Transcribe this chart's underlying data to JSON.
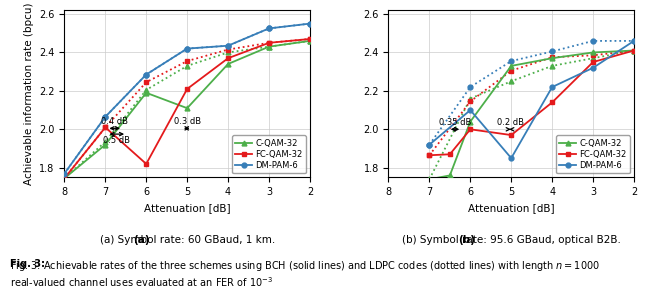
{
  "left": {
    "xlabel": "Attenuation [dB]",
    "ylabel": "Achievable information rate (bpcu)",
    "xlim": [
      8,
      2
    ],
    "ylim": [
      1.75,
      2.62
    ],
    "yticks": [
      1.8,
      2.0,
      2.2,
      2.4,
      2.6
    ],
    "xticks": [
      8,
      7,
      6,
      5,
      4,
      3,
      2
    ],
    "solid": {
      "C-QAM-32": {
        "x": [
          8,
          7,
          6,
          5,
          4,
          3,
          2
        ],
        "y": [
          1.745,
          1.92,
          2.19,
          2.11,
          2.34,
          2.43,
          2.46
        ],
        "color": "#4daf4a",
        "marker": "^"
      },
      "FC-QAM-32": {
        "x": [
          8,
          7,
          6,
          5,
          4,
          3,
          2
        ],
        "y": [
          1.745,
          2.01,
          1.82,
          2.21,
          2.37,
          2.45,
          2.47
        ],
        "color": "#e41a1c",
        "marker": "s"
      },
      "DM-PAM-6": {
        "x": [
          8,
          7,
          6,
          5,
          4,
          3,
          2
        ],
        "y": [
          1.77,
          2.065,
          2.285,
          2.42,
          2.435,
          2.525,
          2.55
        ],
        "color": "#377eb8",
        "marker": "o"
      }
    },
    "dotted": {
      "C-QAM-32": {
        "x": [
          8,
          7,
          6,
          5,
          4,
          3,
          2
        ],
        "y": [
          1.745,
          1.935,
          2.205,
          2.33,
          2.4,
          2.43,
          2.46
        ],
        "color": "#4daf4a",
        "marker": "^"
      },
      "FC-QAM-32": {
        "x": [
          8,
          7,
          6,
          5,
          4,
          3,
          2
        ],
        "y": [
          1.745,
          2.01,
          2.245,
          2.355,
          2.415,
          2.45,
          2.47
        ],
        "color": "#e41a1c",
        "marker": "s"
      },
      "DM-PAM-6": {
        "x": [
          8,
          7,
          6,
          5,
          4,
          3,
          2
        ],
        "y": [
          1.77,
          2.065,
          2.285,
          2.42,
          2.435,
          2.525,
          2.55
        ],
        "color": "#377eb8",
        "marker": "o"
      }
    }
  },
  "right": {
    "xlabel": "Attenuation [dB]",
    "ylabel": "Achievable information rate (bpcu)",
    "xlim": [
      8,
      2
    ],
    "ylim": [
      1.75,
      2.62
    ],
    "yticks": [
      1.8,
      2.0,
      2.2,
      2.4,
      2.6
    ],
    "xticks": [
      8,
      7,
      6,
      5,
      4,
      3,
      2
    ],
    "solid": {
      "C-QAM-32": {
        "x": [
          7,
          6.5,
          6,
          5,
          4,
          3,
          2
        ],
        "y": [
          1.74,
          1.76,
          2.04,
          2.33,
          2.37,
          2.4,
          2.41
        ],
        "color": "#4daf4a",
        "marker": "^"
      },
      "FC-QAM-32": {
        "x": [
          7,
          6.5,
          6,
          5,
          4,
          3,
          2
        ],
        "y": [
          1.865,
          1.87,
          2.0,
          1.97,
          2.14,
          2.35,
          2.41
        ],
        "color": "#e41a1c",
        "marker": "s"
      },
      "DM-PAM-6": {
        "x": [
          7,
          6,
          5,
          4,
          3,
          2
        ],
        "y": [
          1.92,
          2.1,
          1.85,
          2.22,
          2.32,
          2.46
        ],
        "color": "#377eb8",
        "marker": "o"
      }
    },
    "dotted": {
      "C-QAM-32": {
        "x": [
          7,
          6,
          5,
          4,
          3,
          2
        ],
        "y": [
          1.74,
          2.16,
          2.25,
          2.33,
          2.37,
          2.41
        ],
        "color": "#4daf4a",
        "marker": "^"
      },
      "FC-QAM-32": {
        "x": [
          7,
          6,
          5,
          4,
          3,
          2
        ],
        "y": [
          1.865,
          2.145,
          2.305,
          2.375,
          2.385,
          2.41
        ],
        "color": "#e41a1c",
        "marker": "s"
      },
      "DM-PAM-6": {
        "x": [
          7,
          6,
          5,
          4,
          3,
          2
        ],
        "y": [
          1.92,
          2.22,
          2.355,
          2.405,
          2.46,
          2.46
        ],
        "color": "#377eb8",
        "marker": "o"
      }
    }
  },
  "legend_labels": [
    "C-QAM-32",
    "FC-QAM-32",
    "DM-PAM-6"
  ],
  "legend_colors": [
    "#4daf4a",
    "#e41a1c",
    "#377eb8"
  ],
  "legend_markers": [
    "^",
    "s",
    "o"
  ],
  "caption_left": "(a) Symbol rate: 60 GBaud, 1 km.",
  "caption_right": "(b) Symbol rate: 95.6 GBaud, optical B2B.",
  "fig_caption_line1": "Fig. 3: Achievable rates of the three schemes using BCH (solid lines) and LDPC codes (dotted lines) with length $n = 1000$",
  "fig_caption_line2": "real-valued channel uses evaluated at an FER of $10^{-3}$"
}
